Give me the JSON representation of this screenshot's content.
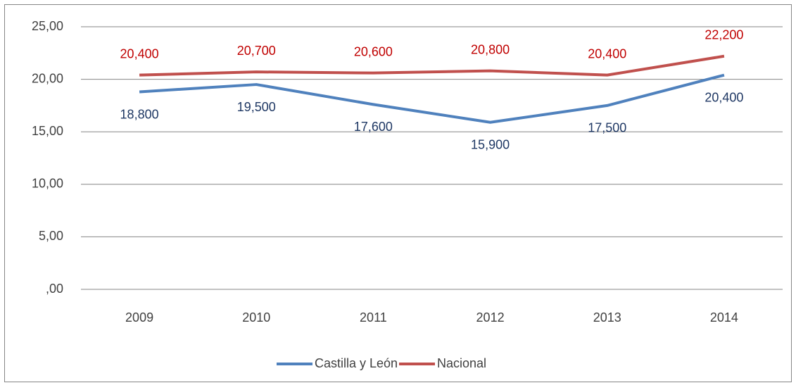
{
  "chart_data": {
    "type": "line",
    "categories": [
      "2009",
      "2010",
      "2011",
      "2012",
      "2013",
      "2014"
    ],
    "series": [
      {
        "name": "Castilla y León",
        "color": "#4f81bd",
        "label_color": "#1f3864",
        "values": [
          18.8,
          19.5,
          17.6,
          15.9,
          17.5,
          20.4
        ],
        "value_labels": [
          "18,800",
          "19,500",
          "17,600",
          "15,900",
          "17,500",
          "20,400"
        ]
      },
      {
        "name": "Nacional",
        "color": "#c0504d",
        "label_color": "#c00000",
        "values": [
          20.4,
          20.7,
          20.6,
          20.8,
          20.4,
          22.2
        ],
        "value_labels": [
          "20,400",
          "20,700",
          "20,600",
          "20,800",
          "20,400",
          "22,200"
        ]
      }
    ],
    "ylim": [
      0,
      25
    ],
    "yticks": [
      {
        "value": 0,
        "label": ",00"
      },
      {
        "value": 5,
        "label": "5,00"
      },
      {
        "value": 10,
        "label": "10,00"
      },
      {
        "value": 15,
        "label": "15,00"
      },
      {
        "value": 20,
        "label": "20,00"
      },
      {
        "value": 25,
        "label": "25,00"
      }
    ],
    "grid": true,
    "legend": "bottom"
  }
}
